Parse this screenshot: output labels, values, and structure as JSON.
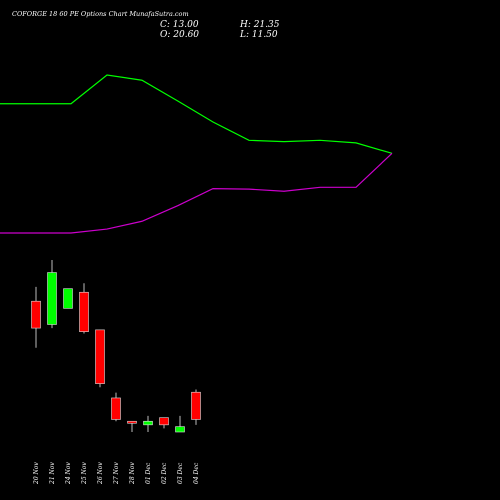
{
  "header": {
    "title": "COFORGE 18        60  PE Options  Chart MunafaSutra.com",
    "close": "C: 13.00",
    "open": "O: 20.60",
    "high": "H: 21.35",
    "low": "L: 11.50"
  },
  "colors": {
    "background": "#000000",
    "bullish": "#00ff00",
    "bearish": "#ff0000",
    "upper_line": "#00ff00",
    "lower_line": "#cc00cc"
  },
  "chart_data": {
    "type": "candlestick",
    "x": [
      "20 Nov",
      "21 Nov",
      "24 Nov",
      "25 Nov",
      "26 Nov",
      "27 Nov",
      "28 Nov",
      "01 Dec",
      "02 Dec",
      "03 Dec",
      "04 Dec"
    ],
    "candles": [
      {
        "date": "20 Nov",
        "open": 46.0,
        "high": 50.0,
        "low": 33.0,
        "close": 38.5
      },
      {
        "date": "21 Nov",
        "open": 39.5,
        "high": 57.5,
        "low": 38.5,
        "close": 54.0
      },
      {
        "date": "24 Nov",
        "open": 44.0,
        "high": 49.5,
        "low": 44.0,
        "close": 49.5
      },
      {
        "date": "25 Nov",
        "open": 48.5,
        "high": 51.0,
        "low": 37.0,
        "close": 37.5
      },
      {
        "date": "26 Nov",
        "open": 38.0,
        "high": 38.0,
        "low": 22.0,
        "close": 23.0
      },
      {
        "date": "27 Nov",
        "open": 19.0,
        "high": 20.5,
        "low": 12.5,
        "close": 13.0
      },
      {
        "date": "28 Nov",
        "open": 12.5,
        "high": 12.5,
        "low": 9.5,
        "close": 12.0
      },
      {
        "date": "01 Dec",
        "open": 11.5,
        "high": 14.0,
        "low": 9.5,
        "close": 12.5
      },
      {
        "date": "02 Dec",
        "open": 13.5,
        "high": 13.5,
        "low": 10.5,
        "close": 11.5
      },
      {
        "date": "03 Dec",
        "open": 9.5,
        "high": 14.0,
        "low": 9.5,
        "close": 11.0
      },
      {
        "date": "04 Dec",
        "open": 20.6,
        "high": 21.35,
        "low": 11.5,
        "close": 13.0
      }
    ],
    "series": [
      {
        "values": [
          59,
          59,
          70,
          68,
          60,
          52,
          45,
          44.5,
          45,
          44,
          40
        ]
      },
      {
        "values": [
          9.5,
          9.5,
          11,
          14,
          20,
          26.5,
          26.3,
          25.5,
          27,
          27,
          40
        ]
      }
    ],
    "line_x": [
      "20 Nov",
      "21 Nov",
      "24 Nov",
      "25 Nov",
      "26 Nov",
      "27 Nov",
      "28 Nov",
      "01 Dec",
      "02 Dec",
      "03 Dec",
      "04 Dec"
    ],
    "grid": false
  }
}
